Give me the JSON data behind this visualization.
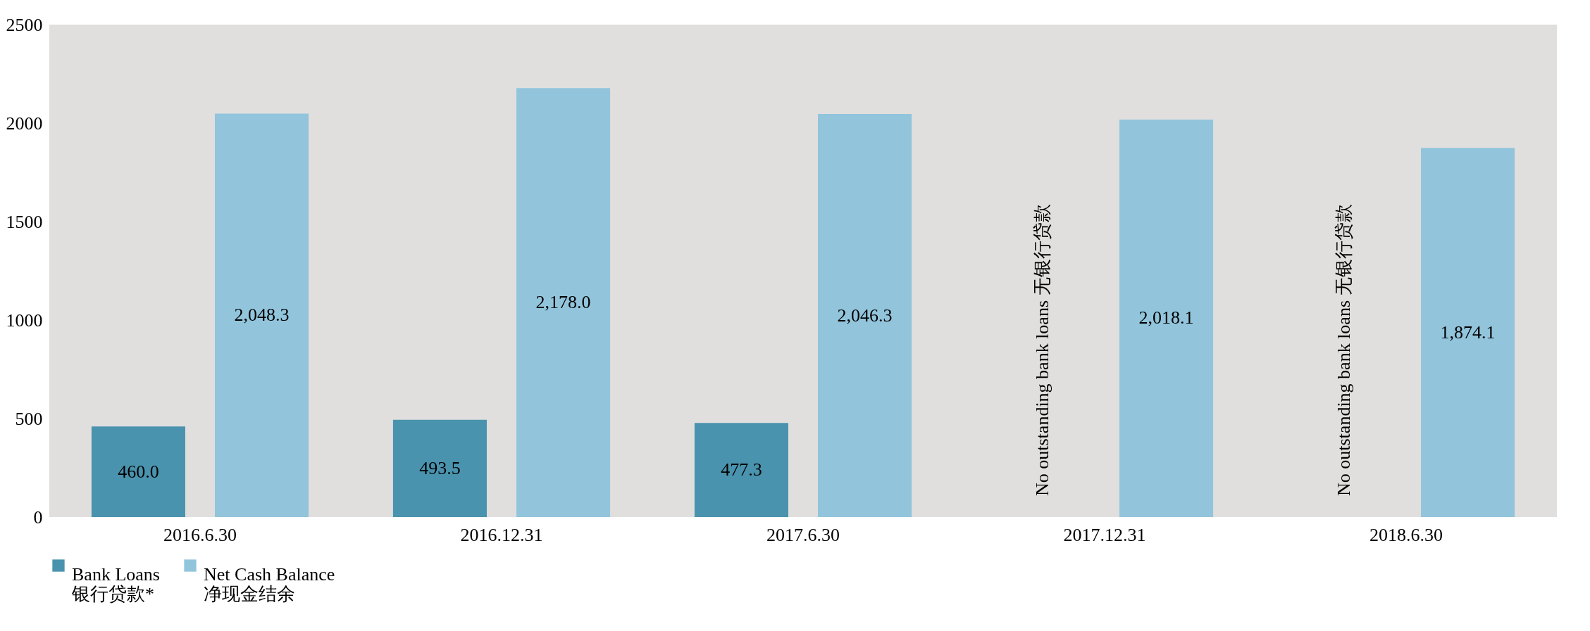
{
  "chart_data": {
    "type": "bar",
    "categories": [
      "2016.6.30",
      "2016.12.31",
      "2017.6.30",
      "2017.12.31",
      "2018.6.30"
    ],
    "series": [
      {
        "name": "Bank Loans\n银行贷款*",
        "color": "#4a93ae",
        "values": [
          460.0,
          493.5,
          477.3,
          null,
          null
        ],
        "value_labels": [
          "460.0",
          "493.5",
          "477.3",
          null,
          null
        ]
      },
      {
        "name": "Net Cash Balance\n净现金结余",
        "color": "#92c5dc",
        "values": [
          2048.3,
          2178.0,
          2046.3,
          2018.1,
          1874.1
        ],
        "value_labels": [
          "2,048.3",
          "2,178.0",
          "2,046.3",
          "2,018.1",
          "1,874.1"
        ]
      }
    ],
    "ylim": [
      0,
      2500
    ],
    "yticks": [
      0,
      500,
      1000,
      1500,
      2000,
      2500
    ],
    "annotations": [
      "No outstanding bank loans  无银行贷款",
      "No outstanding bank loans  无银行贷款"
    ],
    "grid": false,
    "legend": "bottom"
  }
}
